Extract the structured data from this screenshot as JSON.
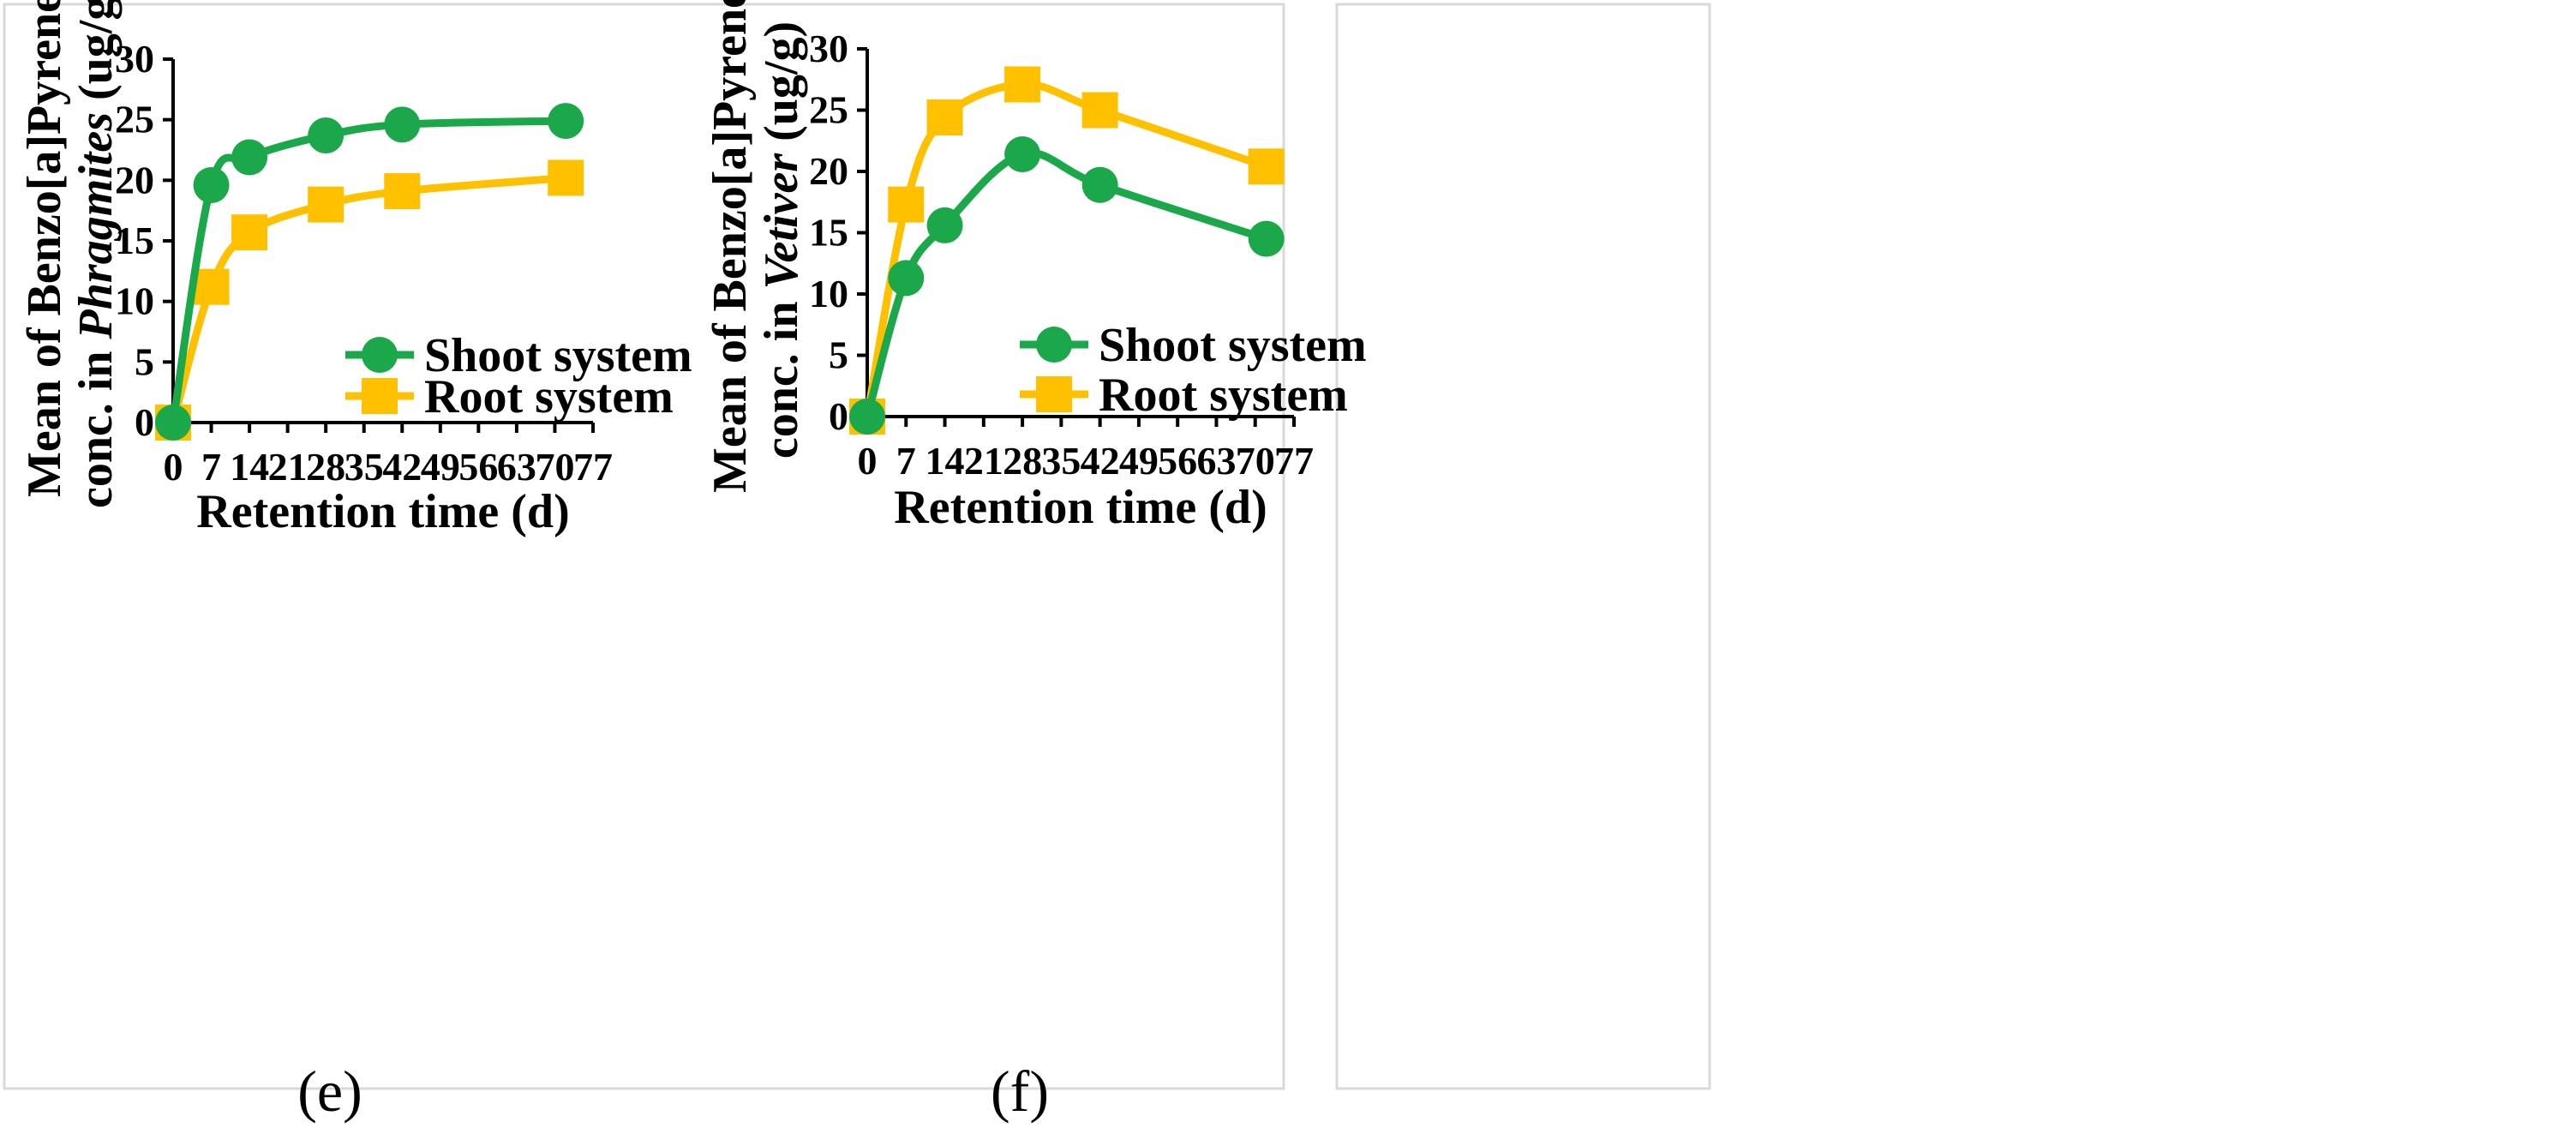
{
  "chart_data": [
    {
      "type": "line",
      "panel": "e",
      "caption": "(e)",
      "ylabel_prefix": "Mean of Benzo[a]Pyrene",
      "ylabel_line2_prefix": "conc. in ",
      "ylabel_species": "Phragmites",
      "ylabel_suffix": " (ug/g)",
      "xlabel": "Retention time (d)",
      "xticks": [
        0,
        7,
        14,
        21,
        28,
        35,
        42,
        49,
        56,
        63,
        70,
        77
      ],
      "yticks": [
        0,
        5,
        10,
        15,
        20,
        25,
        30
      ],
      "xlim": [
        0,
        77
      ],
      "ylim": [
        0,
        30
      ],
      "legend_position": "bottom-right",
      "series": [
        {
          "name": "Shoot system",
          "color": "#1aa84a",
          "marker": "circle",
          "x": [
            0,
            7,
            14,
            28,
            42,
            72
          ],
          "values": [
            0,
            19.6,
            21.9,
            23.7,
            24.6,
            24.9
          ]
        },
        {
          "name": "Root system",
          "color": "#ffc000",
          "marker": "square",
          "x": [
            0,
            7,
            14,
            28,
            42,
            72
          ],
          "values": [
            0,
            11.2,
            15.7,
            18.0,
            19.1,
            20.2
          ]
        }
      ]
    },
    {
      "type": "line",
      "panel": "f",
      "caption": "(f)",
      "ylabel_prefix": "Mean of Benzo[a]Pyrene",
      "ylabel_line2_prefix": "conc. in ",
      "ylabel_species": "Vetiver",
      "ylabel_suffix": " (ug/g)",
      "xlabel": "Retention time (d)",
      "xticks": [
        0,
        7,
        14,
        21,
        28,
        35,
        42,
        49,
        56,
        63,
        70,
        77
      ],
      "yticks": [
        0,
        5,
        10,
        15,
        20,
        25,
        30
      ],
      "xlim": [
        0,
        77
      ],
      "ylim": [
        0,
        30
      ],
      "legend_position": "bottom-right",
      "series": [
        {
          "name": "Shoot system",
          "color": "#1aa84a",
          "marker": "circle",
          "x": [
            0,
            7,
            14,
            28,
            42,
            72
          ],
          "values": [
            0,
            11.3,
            15.6,
            21.4,
            18.9,
            14.5
          ]
        },
        {
          "name": "Root system",
          "color": "#ffc000",
          "marker": "square",
          "x": [
            0,
            7,
            14,
            28,
            42,
            72
          ],
          "values": [
            0,
            17.3,
            24.4,
            27.1,
            25.0,
            20.4
          ]
        }
      ]
    }
  ]
}
